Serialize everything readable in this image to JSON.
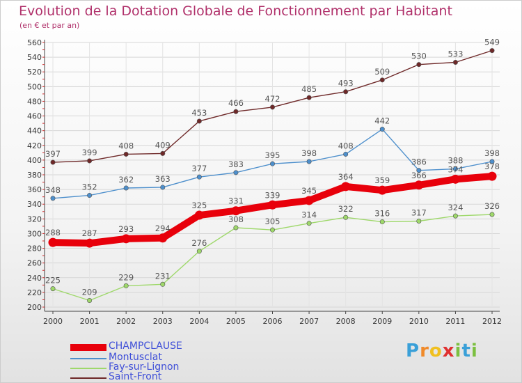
{
  "header": {
    "title": "Evolution de la Dotation Globale de Fonctionnement par Habitant",
    "subtitle": "(en € et par an)"
  },
  "logo": {
    "text": "Proxiti",
    "letters": [
      "P",
      "r",
      "o",
      "x",
      "i",
      "t",
      "i"
    ],
    "letter_colors": [
      "#3aa0d8",
      "#f08a2a",
      "#f0c020",
      "#e03030",
      "#7cc040",
      "#3aa0d8",
      "#7cc040"
    ]
  },
  "chart_data": {
    "type": "line",
    "title": "Evolution de la Dotation Globale de Fonctionnement par Habitant",
    "subtitle": "(en € et par an)",
    "x": [
      "2000",
      "2001",
      "2002",
      "2003",
      "2004",
      "2005",
      "2006",
      "2007",
      "2008",
      "2009",
      "2010",
      "2011",
      "2012"
    ],
    "ylim": [
      200,
      560
    ],
    "yticks": [
      200,
      220,
      240,
      260,
      280,
      300,
      320,
      340,
      360,
      380,
      400,
      420,
      440,
      460,
      480,
      500,
      520,
      540,
      560
    ],
    "grid": true,
    "legend_position": "bottom-left",
    "series": [
      {
        "name": "CHAMPCLAUSE",
        "color": "#e8000b",
        "emphasis": true,
        "values": [
          288,
          287,
          293,
          294,
          325,
          331,
          339,
          345,
          364,
          359,
          366,
          374,
          378
        ]
      },
      {
        "name": "Montusclat",
        "color": "#4d8fcc",
        "emphasis": false,
        "values": [
          348,
          352,
          362,
          363,
          377,
          383,
          395,
          398,
          408,
          442,
          386,
          388,
          398
        ]
      },
      {
        "name": "Fay-sur-Lignon",
        "color": "#9ed86a",
        "emphasis": false,
        "values": [
          225,
          209,
          229,
          231,
          276,
          308,
          305,
          314,
          322,
          316,
          317,
          324,
          326
        ]
      },
      {
        "name": "Saint-Front",
        "color": "#6e2828",
        "emphasis": false,
        "values": [
          397,
          399,
          408,
          409,
          453,
          466,
          472,
          485,
          493,
          509,
          530,
          533,
          549
        ]
      }
    ]
  }
}
